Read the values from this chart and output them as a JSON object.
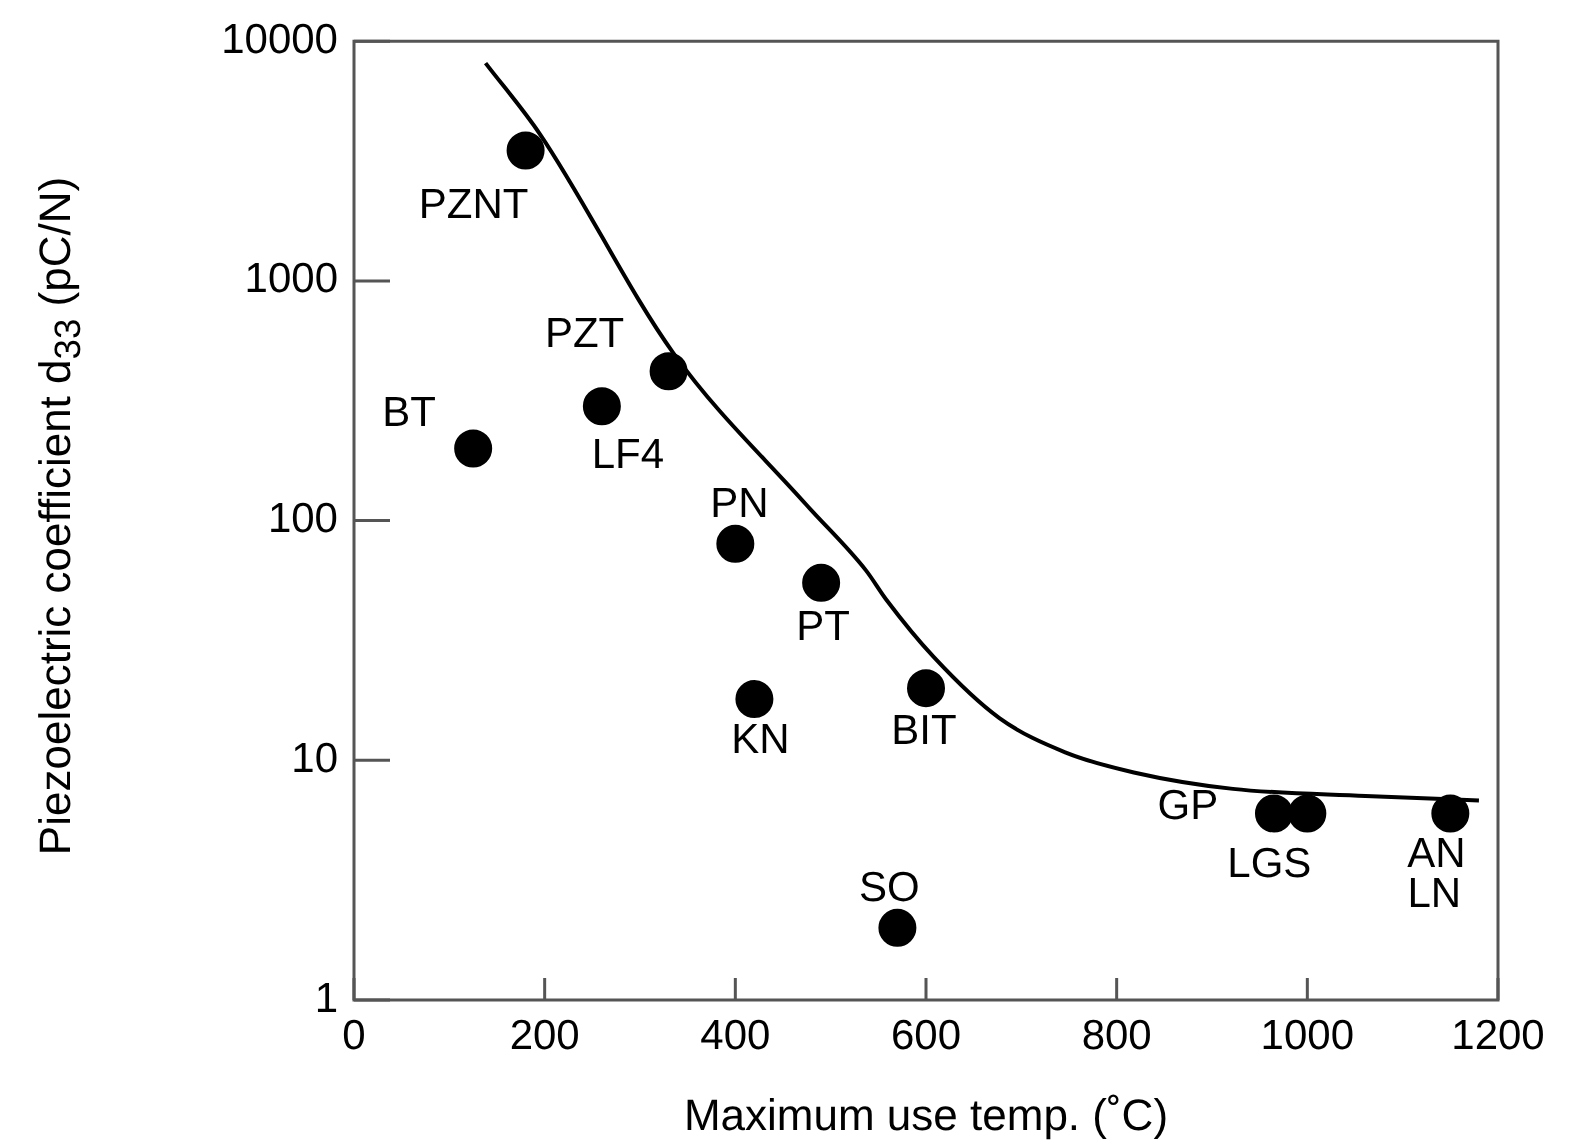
{
  "chart_data": {
    "type": "scatter",
    "xlabel": "Maximum use temp. (˚C)",
    "ylabel": "Piezoelectric coefficient d$_{33}$ (pC/N)",
    "xlim": [
      0,
      1200
    ],
    "xticks": [
      0,
      200,
      400,
      600,
      800,
      1000,
      1200
    ],
    "ylim": [
      1,
      10000
    ],
    "yticks": [
      1,
      10,
      100,
      1000,
      10000
    ],
    "log": "y",
    "grid": false,
    "legend": false,
    "series": [
      {
        "color": "#000000",
        "marker": "circle",
        "x": [
          180,
          125,
          260,
          330,
          400,
          490,
          420,
          600,
          570,
          965,
          1000,
          1150
        ],
        "values": [
          3500,
          200,
          300,
          420,
          80,
          55,
          18,
          20,
          2,
          6,
          6,
          6
        ]
      },
      {
        "type": "line",
        "color": "#000000",
        "marker": "none",
        "line_style": "solid",
        "x": [
          138,
          195,
          335,
          474,
          537,
          558,
          608,
          677,
          746,
          818,
          922,
          1061,
          1180
        ],
        "values": [
          8100,
          4100,
          500,
          117,
          62,
          47,
          27,
          15,
          10.8,
          8.9,
          7.6,
          7.1,
          6.8
        ]
      }
    ],
    "annotations": [
      {
        "text": "PZNT",
        "x": 180,
        "y": 3500
      },
      {
        "text": "BT",
        "x": 125,
        "y": 200
      },
      {
        "text": "PZT",
        "x": 330,
        "y": 420
      },
      {
        "text": "LF4",
        "x": 260,
        "y": 300
      },
      {
        "text": "PN",
        "x": 400,
        "y": 80
      },
      {
        "text": "PT",
        "x": 490,
        "y": 55
      },
      {
        "text": "KN",
        "x": 420,
        "y": 18
      },
      {
        "text": "BIT",
        "x": 600,
        "y": 20
      },
      {
        "text": "SO",
        "x": 570,
        "y": 2
      },
      {
        "text": "GP",
        "x": 965,
        "y": 6
      },
      {
        "text": "LGS",
        "x": 1000,
        "y": 6
      },
      {
        "text": "AN",
        "x": 1150,
        "y": 6
      },
      {
        "text": "LN",
        "x": 1150,
        "y": 6
      }
    ]
  }
}
